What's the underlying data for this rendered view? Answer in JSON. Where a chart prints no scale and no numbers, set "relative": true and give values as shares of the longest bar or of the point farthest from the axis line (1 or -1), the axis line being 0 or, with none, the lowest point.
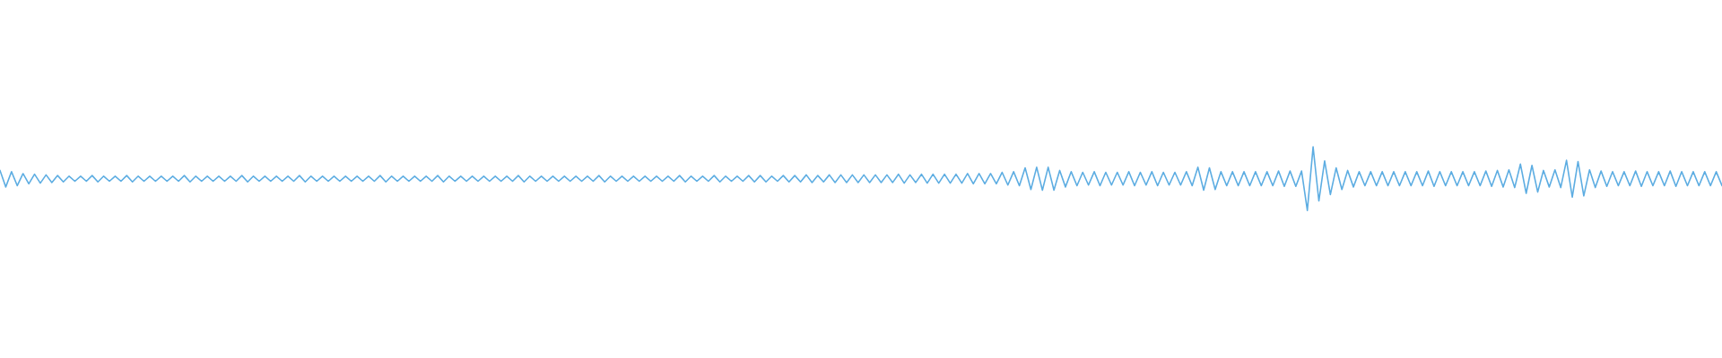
{
  "chart_data": {
    "type": "line",
    "relative": true,
    "categories": [
      null,
      null,
      null,
      null,
      null,
      null,
      null,
      null,
      null,
      null,
      null,
      null,
      null,
      null,
      null,
      null,
      null,
      null,
      null,
      null,
      null,
      null,
      null,
      null,
      null,
      null,
      null,
      null,
      null,
      null,
      null,
      null,
      null,
      null,
      null,
      null,
      null,
      null,
      null,
      null,
      null,
      null,
      null,
      null,
      null,
      null,
      null,
      null,
      null,
      null,
      null,
      null,
      null,
      null,
      null,
      null,
      null,
      null,
      null,
      null,
      null,
      null,
      null,
      null,
      null,
      null,
      null,
      null,
      null,
      null,
      null,
      null,
      null,
      null,
      null,
      null,
      null,
      null,
      null,
      null,
      null,
      null,
      null,
      null,
      null,
      null,
      null,
      null,
      null,
      null,
      null,
      null,
      null,
      null,
      null,
      null,
      null,
      null,
      null,
      null,
      null,
      null,
      null,
      null,
      null,
      null,
      null,
      null,
      null,
      null,
      null,
      null,
      null,
      null,
      null,
      null,
      null,
      null,
      null,
      null,
      null,
      null,
      null,
      null,
      null,
      null,
      null,
      null,
      null,
      null,
      null,
      null,
      null,
      null,
      null,
      null,
      null,
      null,
      null,
      null,
      null,
      null,
      null,
      null,
      null,
      null,
      null,
      null,
      null,
      null,
      null,
      null,
      null,
      null,
      null,
      null,
      null,
      null,
      null,
      null,
      null,
      null,
      null,
      null,
      null,
      null,
      null,
      null,
      null,
      null,
      null,
      null,
      null,
      null,
      null,
      null,
      null,
      null,
      null,
      null,
      null,
      null,
      null,
      null,
      null,
      null,
      null,
      null,
      null,
      null,
      null,
      null,
      null,
      null,
      null,
      null,
      null,
      null,
      null,
      null,
      null,
      null,
      null,
      null,
      null,
      null,
      null,
      null,
      null,
      null,
      null,
      null,
      null,
      null,
      null,
      null,
      null,
      null,
      null,
      null,
      null,
      null,
      null,
      null,
      null,
      null,
      null,
      null,
      null,
      null,
      null,
      null,
      null,
      null,
      null,
      null,
      null,
      null,
      null,
      null,
      null,
      null,
      null,
      null,
      null,
      null,
      null,
      null,
      null,
      null,
      null,
      null,
      null,
      null,
      null,
      null,
      null,
      null,
      null,
      null,
      null,
      null,
      null,
      null,
      null,
      null,
      null,
      null,
      null,
      null,
      null,
      null,
      null,
      null,
      null,
      null,
      null,
      null,
      null,
      null,
      null,
      null,
      null,
      null,
      null,
      null,
      null,
      null,
      null,
      null,
      null,
      null,
      null,
      null,
      null,
      null,
      null,
      null,
      null,
      null
    ],
    "series": [
      {
        "color": "#5dade2",
        "values": [
          0.63,
          0.37,
          0.61,
          0.39,
          0.58,
          0.42,
          0.57,
          0.43,
          0.56,
          0.44,
          0.55,
          0.45,
          0.54,
          0.46,
          0.54,
          0.46,
          0.55,
          0.45,
          0.54,
          0.46,
          0.54,
          0.46,
          0.55,
          0.45,
          0.54,
          0.46,
          0.54,
          0.46,
          0.54,
          0.46,
          0.54,
          0.46,
          0.55,
          0.45,
          0.54,
          0.46,
          0.54,
          0.46,
          0.54,
          0.46,
          0.54,
          0.46,
          0.55,
          0.45,
          0.54,
          0.46,
          0.54,
          0.46,
          0.54,
          0.46,
          0.54,
          0.46,
          0.55,
          0.45,
          0.54,
          0.46,
          0.54,
          0.46,
          0.54,
          0.46,
          0.54,
          0.46,
          0.54,
          0.46,
          0.54,
          0.46,
          0.55,
          0.45,
          0.54,
          0.46,
          0.54,
          0.46,
          0.54,
          0.46,
          0.54,
          0.46,
          0.55,
          0.45,
          0.54,
          0.46,
          0.54,
          0.46,
          0.54,
          0.46,
          0.54,
          0.46,
          0.54,
          0.46,
          0.54,
          0.46,
          0.55,
          0.45,
          0.54,
          0.46,
          0.54,
          0.46,
          0.54,
          0.46,
          0.54,
          0.46,
          0.54,
          0.46,
          0.54,
          0.46,
          0.55,
          0.45,
          0.54,
          0.46,
          0.54,
          0.46,
          0.54,
          0.46,
          0.54,
          0.46,
          0.54,
          0.46,
          0.54,
          0.46,
          0.55,
          0.45,
          0.54,
          0.46,
          0.54,
          0.46,
          0.55,
          0.45,
          0.54,
          0.46,
          0.54,
          0.46,
          0.55,
          0.45,
          0.55,
          0.45,
          0.54,
          0.46,
          0.55,
          0.45,
          0.55,
          0.45,
          0.56,
          0.44,
          0.55,
          0.45,
          0.56,
          0.44,
          0.56,
          0.44,
          0.56,
          0.44,
          0.56,
          0.44,
          0.56,
          0.44,
          0.56,
          0.44,
          0.57,
          0.43,
          0.56,
          0.44,
          0.57,
          0.43,
          0.57,
          0.43,
          0.57,
          0.43,
          0.57,
          0.43,
          0.58,
          0.42,
          0.58,
          0.42,
          0.58,
          0.42,
          0.6,
          0.4,
          0.61,
          0.39,
          0.67,
          0.33,
          0.68,
          0.32,
          0.68,
          0.32,
          0.63,
          0.37,
          0.61,
          0.39,
          0.6,
          0.4,
          0.61,
          0.39,
          0.6,
          0.4,
          0.6,
          0.4,
          0.61,
          0.39,
          0.6,
          0.4,
          0.61,
          0.39,
          0.6,
          0.4,
          0.6,
          0.4,
          0.61,
          0.39,
          0.68,
          0.32,
          0.67,
          0.33,
          0.61,
          0.39,
          0.61,
          0.39,
          0.61,
          0.39,
          0.61,
          0.39,
          0.61,
          0.39,
          0.62,
          0.38,
          0.62,
          0.38,
          0.62,
          0,
          1,
          0.15,
          0.78,
          0.25,
          0.67,
          0.33,
          0.63,
          0.37,
          0.61,
          0.39,
          0.61,
          0.39,
          0.61,
          0.39,
          0.61,
          0.39,
          0.61,
          0.39,
          0.61,
          0.39,
          0.62,
          0.38,
          0.61,
          0.39,
          0.61,
          0.39,
          0.61,
          0.39,
          0.61,
          0.39,
          0.62,
          0.38,
          0.63,
          0.37,
          0.64,
          0.36,
          0.73,
          0.27,
          0.71,
          0.29,
          0.63,
          0.37,
          0.64,
          0.36,
          0.79,
          0.21,
          0.77,
          0.23,
          0.64,
          0.36,
          0.62,
          0.38,
          0.61,
          0.39,
          0.61,
          0.39,
          0.62,
          0.38,
          0.61,
          0.39,
          0.61,
          0.39,
          0.62,
          0.38,
          0.61,
          0.39,
          0.61,
          0.39,
          0.61,
          0.39,
          0.61,
          0.39
        ]
      }
    ]
  }
}
